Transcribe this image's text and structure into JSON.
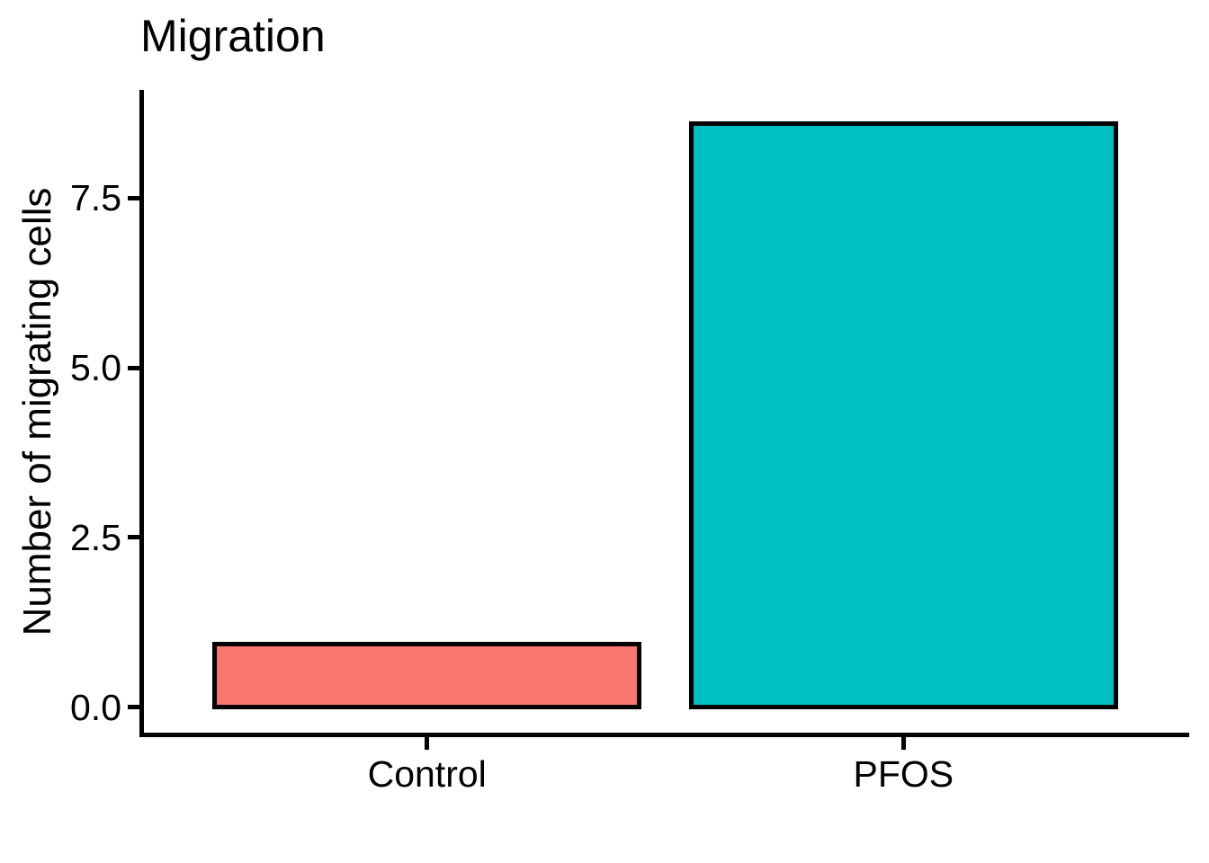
{
  "title": "Migration",
  "colors": {
    "background": "#FFFFFF",
    "axis": "#000000",
    "text": "#000000",
    "control_bar_fill": "#F8766D",
    "pfos_bar_fill": "#00BFC4",
    "bar_border": "#000000"
  },
  "chart_data": {
    "type": "bar",
    "title": "Migration",
    "xlabel": "",
    "ylabel": "Number of migrating cells",
    "categories": [
      "Control",
      "PFOS"
    ],
    "values": [
      0.93,
      8.6
    ],
    "bar_colors": [
      "#F8766D",
      "#00BFC4"
    ],
    "bar_border_color": "#000000",
    "yticks": [
      0.0,
      2.5,
      5.0,
      7.5
    ],
    "ytick_labels": [
      "0.0",
      "2.5",
      "5.0",
      "7.5"
    ],
    "ylim": [
      -0.4,
      9.09
    ],
    "grid": false,
    "legend": false,
    "bar_relative_width": 0.9,
    "axis_style": "classic-left-bottom-only"
  }
}
